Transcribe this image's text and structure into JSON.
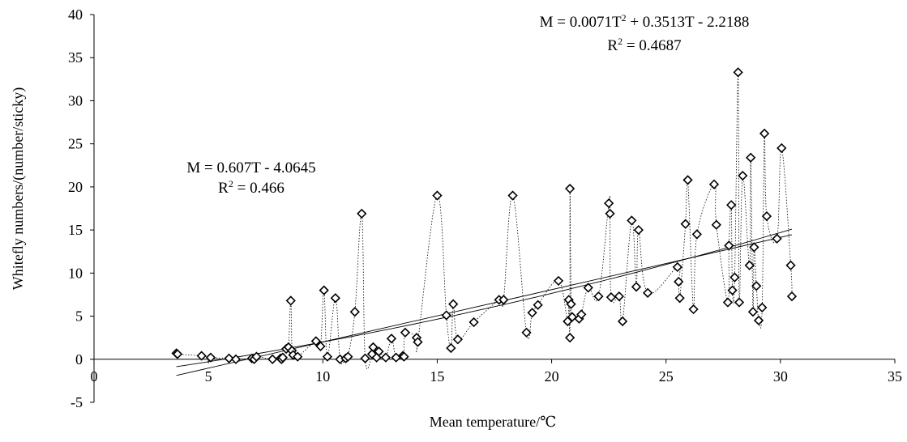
{
  "chart_data": {
    "type": "scatter",
    "xlabel": "Mean temperature/℃",
    "ylabel": "Whitefly numbers/(number/sticky)",
    "xlim": [
      0,
      35
    ],
    "ylim": [
      -5,
      40
    ],
    "x_ticks": [
      0,
      5,
      10,
      15,
      20,
      25,
      30,
      35
    ],
    "y_ticks": [
      -5,
      0,
      5,
      10,
      15,
      20,
      25,
      30,
      35,
      40
    ],
    "grid": false,
    "legend": "none",
    "annotations": {
      "linear": {
        "equation": "M = 0.607T - 4.0645",
        "r2_label": "R",
        "r2_value": " = 0.466",
        "slope": 0.607,
        "intercept": -4.0645,
        "x_range": [
          3.6,
          30.5
        ]
      },
      "quadratic": {
        "eq_prefix": "M = 0.0071T",
        "eq_suffix": " + 0.3513T - 2.2188",
        "r2_label": "R",
        "r2_value": " = 0.4687",
        "a": 0.0071,
        "b": 0.3513,
        "c": -2.2188,
        "x_range": [
          3.6,
          30.5
        ]
      },
      "superscript": "2"
    },
    "points": [
      [
        3.6,
        0.7
      ],
      [
        3.65,
        0.6
      ],
      [
        4.7,
        0.4
      ],
      [
        5.1,
        0.2
      ],
      [
        5.9,
        0.1
      ],
      [
        6.2,
        0.0
      ],
      [
        6.9,
        0.1
      ],
      [
        7.0,
        0.0
      ],
      [
        7.1,
        0.3
      ],
      [
        7.8,
        0.0
      ],
      [
        8.15,
        0.1
      ],
      [
        8.2,
        0.0
      ],
      [
        8.25,
        0.2
      ],
      [
        8.4,
        1.2
      ],
      [
        8.5,
        1.4
      ],
      [
        8.6,
        6.8
      ],
      [
        8.65,
        1.0
      ],
      [
        8.7,
        0.5
      ],
      [
        8.9,
        0.3
      ],
      [
        9.7,
        2.1
      ],
      [
        9.9,
        1.5
      ],
      [
        10.05,
        8.0
      ],
      [
        10.2,
        0.3
      ],
      [
        10.55,
        7.1
      ],
      [
        10.75,
        0.0
      ],
      [
        11.0,
        0.1
      ],
      [
        11.1,
        0.3
      ],
      [
        11.4,
        5.5
      ],
      [
        11.7,
        16.9
      ],
      [
        11.85,
        0.1
      ],
      [
        12.15,
        0.6
      ],
      [
        12.2,
        1.4
      ],
      [
        12.35,
        0.2
      ],
      [
        12.45,
        0.9
      ],
      [
        12.75,
        0.2
      ],
      [
        13.0,
        2.4
      ],
      [
        13.2,
        0.2
      ],
      [
        13.5,
        0.4
      ],
      [
        13.55,
        0.3
      ],
      [
        13.6,
        3.1
      ],
      [
        14.1,
        2.5
      ],
      [
        14.15,
        2.0
      ],
      [
        15.0,
        19.0
      ],
      [
        15.4,
        5.1
      ],
      [
        15.6,
        1.3
      ],
      [
        15.7,
        6.4
      ],
      [
        15.9,
        2.3
      ],
      [
        16.6,
        4.3
      ],
      [
        17.7,
        6.9
      ],
      [
        17.9,
        6.9
      ],
      [
        18.3,
        19.0
      ],
      [
        18.9,
        3.1
      ],
      [
        19.15,
        5.4
      ],
      [
        19.4,
        6.3
      ],
      [
        20.3,
        9.1
      ],
      [
        20.7,
        4.4
      ],
      [
        20.75,
        6.9
      ],
      [
        20.8,
        2.5
      ],
      [
        20.85,
        6.4
      ],
      [
        20.8,
        19.8
      ],
      [
        20.9,
        4.9
      ],
      [
        21.2,
        4.7
      ],
      [
        21.3,
        5.2
      ],
      [
        21.6,
        8.3
      ],
      [
        22.05,
        7.3
      ],
      [
        22.5,
        18.1
      ],
      [
        22.55,
        16.9
      ],
      [
        22.6,
        7.2
      ],
      [
        22.95,
        7.3
      ],
      [
        23.1,
        4.4
      ],
      [
        23.5,
        16.1
      ],
      [
        23.7,
        8.4
      ],
      [
        23.8,
        15.0
      ],
      [
        24.2,
        7.7
      ],
      [
        25.5,
        10.7
      ],
      [
        25.55,
        9.0
      ],
      [
        25.6,
        7.1
      ],
      [
        25.85,
        15.7
      ],
      [
        25.95,
        20.8
      ],
      [
        26.2,
        5.8
      ],
      [
        26.35,
        14.5
      ],
      [
        27.1,
        20.3
      ],
      [
        27.2,
        15.6
      ],
      [
        27.7,
        6.6
      ],
      [
        27.75,
        13.2
      ],
      [
        27.85,
        17.9
      ],
      [
        27.9,
        8.0
      ],
      [
        28.0,
        9.5
      ],
      [
        28.15,
        33.3
      ],
      [
        28.2,
        6.6
      ],
      [
        28.35,
        21.3
      ],
      [
        28.65,
        10.9
      ],
      [
        28.7,
        23.4
      ],
      [
        28.8,
        5.5
      ],
      [
        28.85,
        13.0
      ],
      [
        28.95,
        8.5
      ],
      [
        29.05,
        4.5
      ],
      [
        29.2,
        6.0
      ],
      [
        29.3,
        26.2
      ],
      [
        29.4,
        16.6
      ],
      [
        29.85,
        14.0
      ],
      [
        30.05,
        24.5
      ],
      [
        30.45,
        10.9
      ],
      [
        30.5,
        7.3
      ]
    ]
  }
}
